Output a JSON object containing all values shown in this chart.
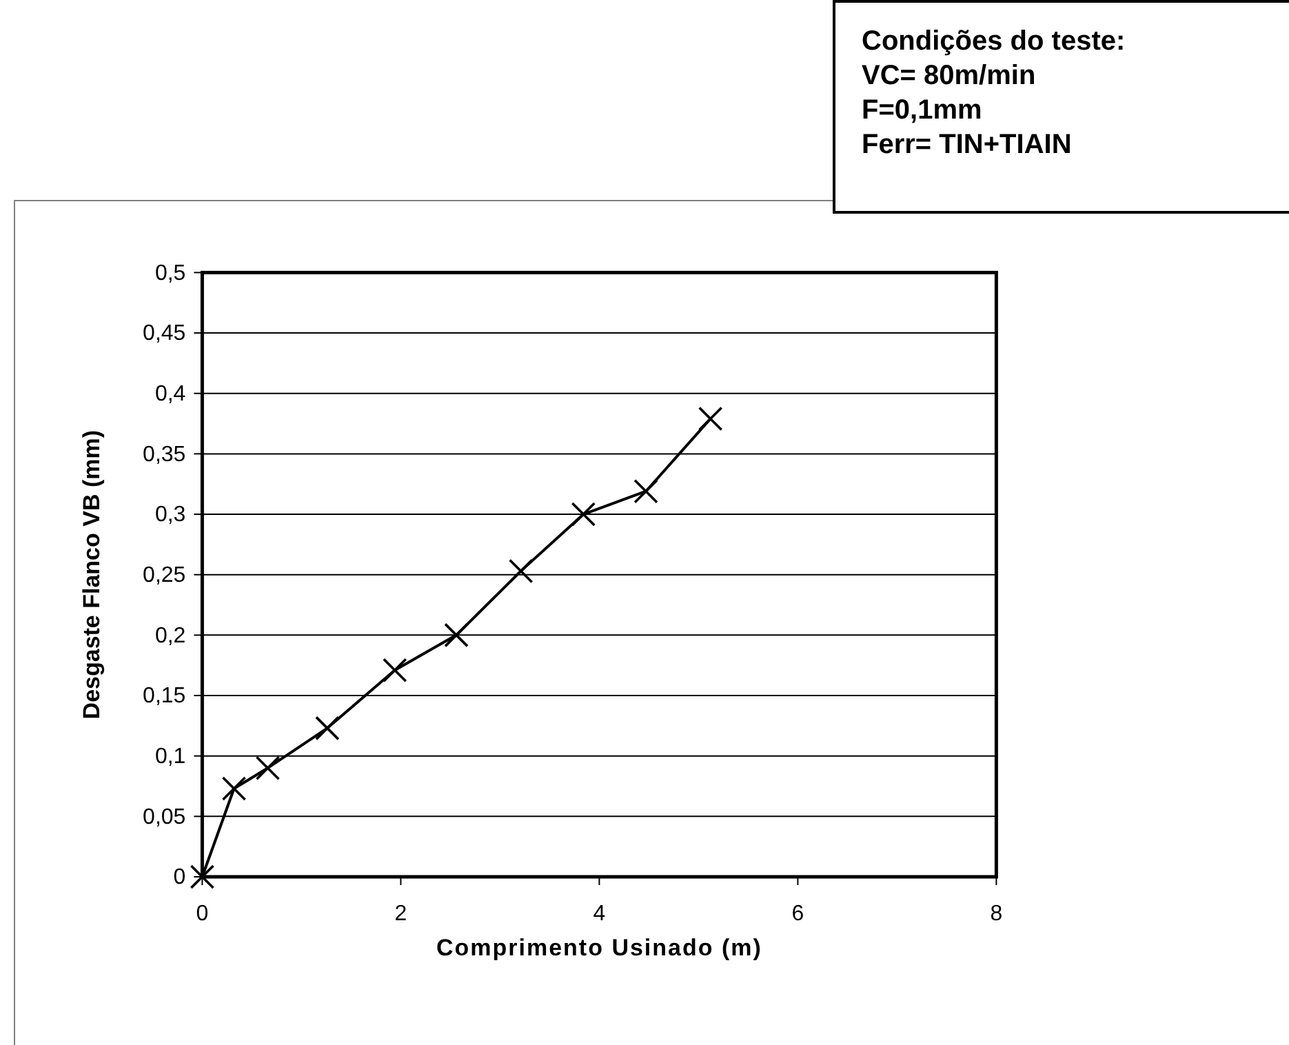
{
  "chart_data": {
    "type": "line",
    "xlabel": "Comprimento Usinado (m)",
    "ylabel": "Desgaste Flanco VB (mm)",
    "annotations": [
      "Condições do teste:",
      "VC= 80m/min",
      "F=0,1mm",
      "Ferr= TIN+TIAIN"
    ],
    "x": [
      0,
      0.32,
      0.66,
      1.26,
      1.94,
      2.56,
      3.21,
      3.84,
      4.47,
      5.12
    ],
    "series": [
      {
        "color": "#000000",
        "values": [
          0,
          0.073,
          0.09,
          0.123,
          0.171,
          0.2,
          0.253,
          0.3,
          0.319,
          0.379
        ]
      }
    ],
    "xlim": [
      0,
      8
    ],
    "xticks": [
      0,
      2,
      4,
      6,
      8
    ],
    "ylim": [
      0,
      0.5
    ],
    "yticks": [
      {
        "value": 0,
        "label": "0"
      },
      {
        "value": 0.05,
        "label": "0,05"
      },
      {
        "value": 0.1,
        "label": "0,1"
      },
      {
        "value": 0.15,
        "label": "0,15"
      },
      {
        "value": 0.2,
        "label": "0,2"
      },
      {
        "value": 0.25,
        "label": "0,25"
      },
      {
        "value": 0.3,
        "label": "0,3"
      },
      {
        "value": 0.35,
        "label": "0,35"
      },
      {
        "value": 0.4,
        "label": "0,4"
      },
      {
        "value": 0.45,
        "label": "0,45"
      },
      {
        "value": 0.5,
        "label": "0,5"
      }
    ],
    "grid": "y",
    "marker": "cross",
    "line_style": "solid"
  }
}
